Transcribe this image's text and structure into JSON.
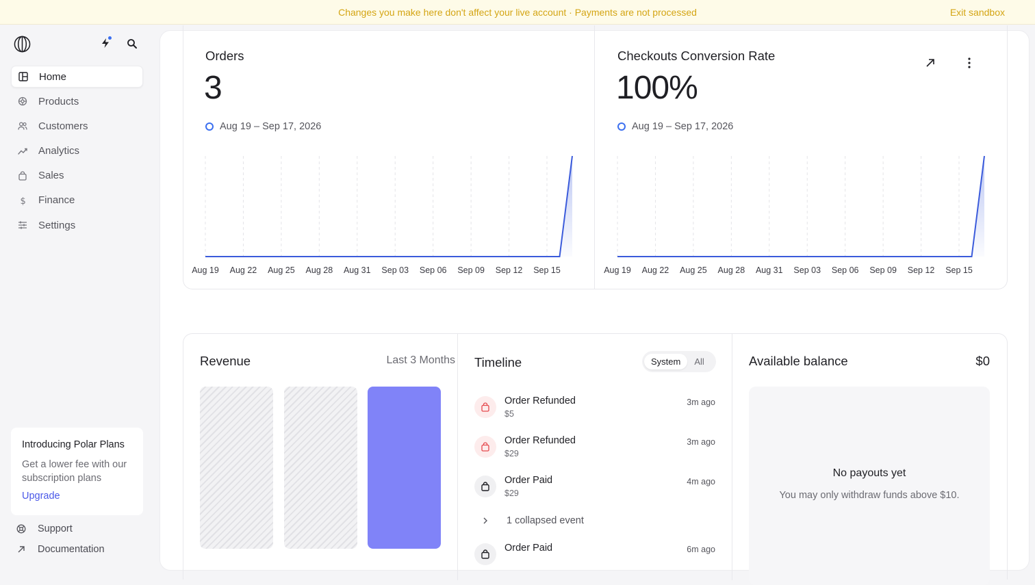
{
  "banner": {
    "message": "Changes you make here don't affect your live account · Payments are not processed",
    "exit_label": "Exit sandbox"
  },
  "sidebar": {
    "items": [
      {
        "label": "Home",
        "icon": "home-icon",
        "active": true
      },
      {
        "label": "Products",
        "icon": "products-icon"
      },
      {
        "label": "Customers",
        "icon": "customers-icon"
      },
      {
        "label": "Analytics",
        "icon": "analytics-icon"
      },
      {
        "label": "Sales",
        "icon": "sales-icon"
      },
      {
        "label": "Finance",
        "icon": "finance-icon"
      },
      {
        "label": "Settings",
        "icon": "settings-icon"
      }
    ],
    "promo": {
      "title": "Introducing Polar Plans",
      "description": "Get a lower fee with our subscription plans",
      "cta": "Upgrade"
    },
    "footer": {
      "support": "Support",
      "documentation": "Documentation"
    }
  },
  "orders": {
    "title": "Orders",
    "value": "3",
    "range": "Aug 19 – Sep 17, 2026"
  },
  "conversion": {
    "title": "Checkouts Conversion Rate",
    "value": "100%",
    "range": "Aug 19 – Sep 17, 2026"
  },
  "chart_data": [
    {
      "type": "area",
      "x_ticks": [
        "Aug 19",
        "Aug 22",
        "Aug 25",
        "Aug 28",
        "Aug 31",
        "Sep 03",
        "Sep 06",
        "Sep 09",
        "Sep 12",
        "Sep 15"
      ],
      "x": [
        "Aug 19",
        "Sep 15",
        "Sep 16",
        "Sep 17"
      ],
      "values": [
        0,
        0,
        0,
        3
      ],
      "color": "#3b5bdb"
    },
    {
      "type": "area",
      "x_ticks": [
        "Aug 19",
        "Aug 22",
        "Aug 25",
        "Aug 28",
        "Aug 31",
        "Sep 03",
        "Sep 06",
        "Sep 09",
        "Sep 12",
        "Sep 15"
      ],
      "x": [
        "Aug 19",
        "Sep 15",
        "Sep 16",
        "Sep 17"
      ],
      "values": [
        0,
        0,
        0,
        100
      ],
      "color": "#3b5bdb"
    }
  ],
  "revenue": {
    "title": "Revenue",
    "range": "Last 3 Months",
    "bars": [
      {
        "style": "empty"
      },
      {
        "style": "empty"
      },
      {
        "style": "filled",
        "color": "#8083f8"
      }
    ]
  },
  "timeline": {
    "title": "Timeline",
    "toggle": {
      "system": "System",
      "all": "All",
      "selected": "System"
    },
    "events": [
      {
        "name": "Order Refunded",
        "amount": "$5",
        "time": "3m ago",
        "kind": "refund"
      },
      {
        "name": "Order Refunded",
        "amount": "$29",
        "time": "3m ago",
        "kind": "refund"
      },
      {
        "name": "Order Paid",
        "amount": "$29",
        "time": "4m ago",
        "kind": "paid"
      }
    ],
    "collapsed": "1 collapsed event",
    "last_event": {
      "name": "Order Paid",
      "time": "6m ago"
    }
  },
  "balance": {
    "title": "Available balance",
    "amount": "$0",
    "empty_title": "No payouts yet",
    "empty_desc": "You may only withdraw funds above $10."
  }
}
